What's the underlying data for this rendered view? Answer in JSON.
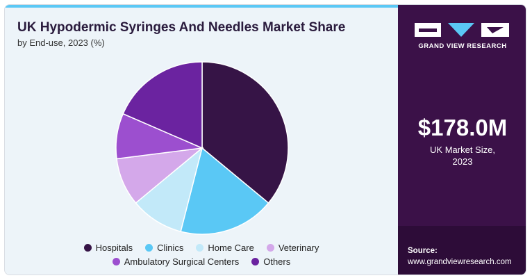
{
  "chart_data": {
    "type": "pie",
    "title": "UK Hypodermic Syringes And Needles Market Share",
    "subtitle": "by End-use, 2023 (%)",
    "categories": [
      "Hospitals",
      "Clinics",
      "Home Care",
      "Veterinary",
      "Ambulatory Surgical Centers",
      "Others"
    ],
    "values": [
      36.0,
      18.0,
      10.0,
      9.0,
      8.5,
      18.5
    ],
    "colors": [
      "#361446",
      "#5ac8f5",
      "#c2e9f9",
      "#d4a8ea",
      "#9c4fcf",
      "#6b23a0"
    ],
    "start_angle_deg": 0,
    "direction": "clockwise",
    "legend_position": "bottom"
  },
  "sidebar": {
    "brand": "GRAND VIEW RESEARCH",
    "market_value": "$178.0M",
    "market_label": "UK Market Size,\n2023",
    "source_label": "Source:",
    "source_url": "www.grandviewresearch.com"
  }
}
